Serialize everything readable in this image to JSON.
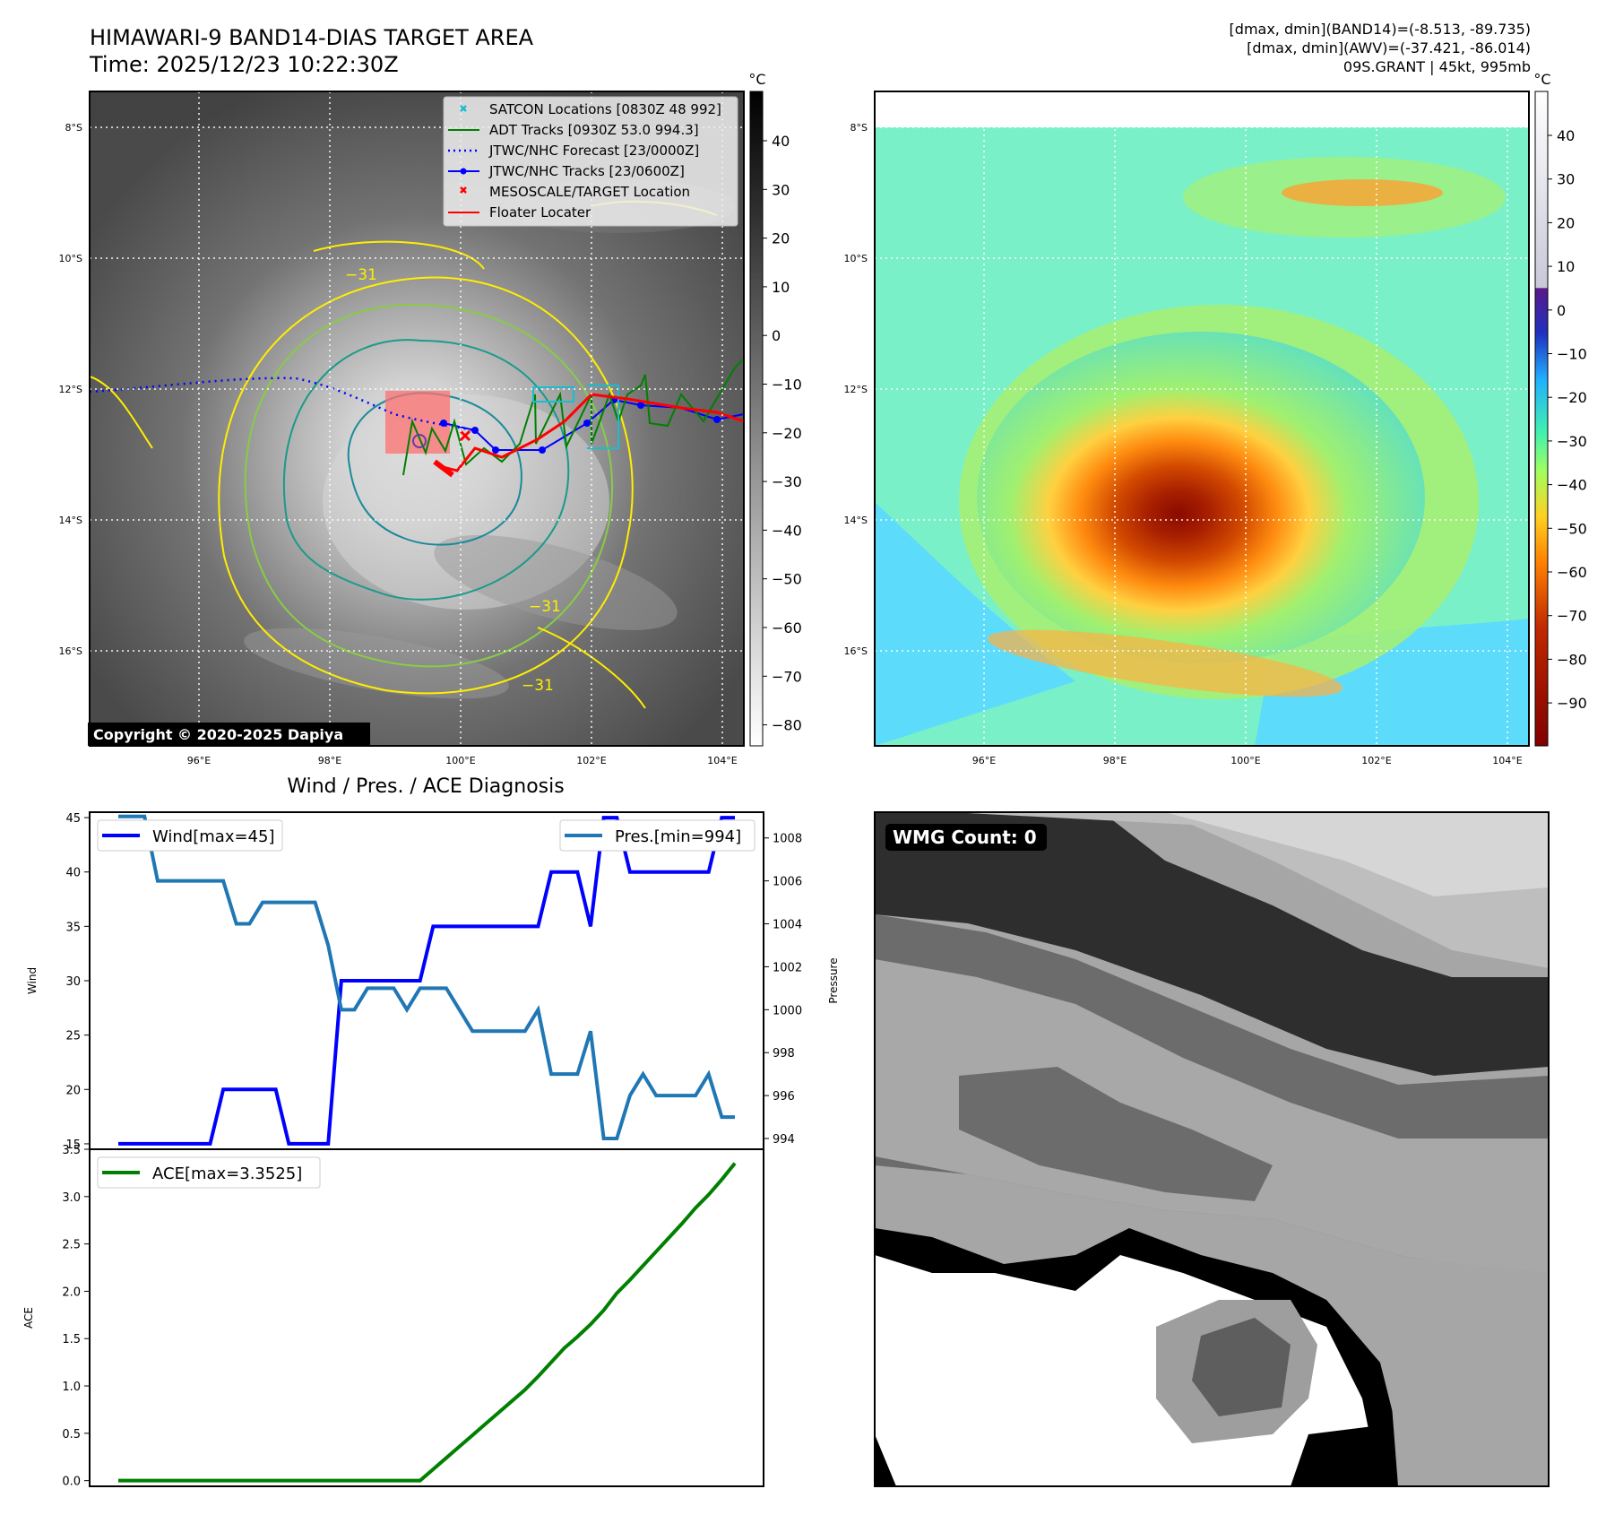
{
  "header": {
    "title": "HIMAWARI-9 BAND14-DIAS TARGET AREA",
    "time": "Time: 2025/12/23 10:22:30Z",
    "info_line1": "[dmax, dmin](BAND14)=(-8.513, -89.735)",
    "info_line2": "[dmax, dmin](AWV)=(-37.421, -86.014)",
    "info_line3": "09S.GRANT | 45kt, 995mb"
  },
  "map": {
    "lon_ticks": [
      "96°E",
      "98°E",
      "100°E",
      "102°E",
      "104°E"
    ],
    "lat_ticks": [
      "8°S",
      "10°S",
      "12°S",
      "14°S",
      "16°S"
    ],
    "copyright": "Copyright © 2020-2025 Dapiya",
    "contour_label": "−31",
    "legend": [
      {
        "label": "SATCON Locations [0830Z 48 992]",
        "color": "#17becf",
        "icon": "x-marker-icon"
      },
      {
        "label": "ADT Tracks [0930Z 53.0 994.3]",
        "color": "#008000",
        "icon": "line-icon"
      },
      {
        "label": "JTWC/NHC Forecast [23/0000Z]",
        "color": "#0000ff",
        "icon": "dotted-line-icon"
      },
      {
        "label": "JTWC/NHC Tracks [23/0600Z]",
        "color": "#0000ff",
        "icon": "line-dot-icon"
      },
      {
        "label": "MESOSCALE/TARGET Location",
        "color": "#ff0000",
        "icon": "x-marker-icon"
      },
      {
        "label": "Floater Locater",
        "color": "#ff0000",
        "icon": "line-icon"
      }
    ]
  },
  "colorbar_gray": {
    "unit": "°C",
    "ticks": [
      "40",
      "30",
      "20",
      "10",
      "0",
      "−10",
      "−20",
      "−30",
      "−40",
      "−50",
      "−60",
      "−70",
      "−80"
    ]
  },
  "colorbar_color": {
    "unit": "°C",
    "ticks": [
      "40",
      "30",
      "20",
      "10",
      "0",
      "−10",
      "−20",
      "−30",
      "−40",
      "−50",
      "−60",
      "−70",
      "−80",
      "−90"
    ]
  },
  "wmg": {
    "label": "WMG Count: 0"
  },
  "chart_data": [
    {
      "type": "line",
      "title": "Wind / Pres. / ACE Diagnosis",
      "ylabel": "Wind",
      "y2label": "Pressure",
      "ylim": [
        14.5,
        45.5
      ],
      "y2lim": [
        993.5,
        1009.2
      ],
      "yticks": [
        15,
        20,
        25,
        30,
        35,
        40,
        45
      ],
      "y2ticks": [
        994,
        996,
        998,
        1000,
        1002,
        1004,
        1006,
        1008
      ],
      "series": [
        {
          "name": "Wind[max=45]",
          "color": "#0000ff",
          "axis": "left",
          "values": [
            15,
            15,
            15,
            15,
            15,
            15,
            15,
            15,
            20,
            20,
            20,
            20,
            20,
            15,
            15,
            15,
            15,
            30,
            30,
            30,
            30,
            30,
            30,
            30,
            35,
            35,
            35,
            35,
            35,
            35,
            35,
            35,
            35,
            40,
            40,
            40,
            35,
            45,
            45,
            40,
            40,
            40,
            40,
            40,
            40,
            40,
            45,
            45
          ]
        },
        {
          "name": "Pres.[min=994]",
          "color": "#1f77b4",
          "axis": "right",
          "values": [
            1009,
            1009,
            1009,
            1006,
            1006,
            1006,
            1006,
            1006,
            1006,
            1004,
            1004,
            1005,
            1005,
            1005,
            1005,
            1005,
            1003,
            1000,
            1000,
            1001,
            1001,
            1001,
            1000,
            1001,
            1001,
            1001,
            1000,
            999,
            999,
            999,
            999,
            999,
            1000,
            997,
            997,
            997,
            999,
            994,
            994,
            996,
            997,
            996,
            996,
            996,
            996,
            997,
            995,
            995
          ]
        }
      ]
    },
    {
      "type": "line",
      "ylabel": "ACE",
      "ylim": [
        -0.06,
        3.5
      ],
      "yticks": [
        0.0,
        0.5,
        1.0,
        1.5,
        2.0,
        2.5,
        3.0,
        3.5
      ],
      "series": [
        {
          "name": "ACE[max=3.3525]",
          "color": "#008000",
          "values": [
            0,
            0,
            0,
            0,
            0,
            0,
            0,
            0,
            0,
            0,
            0,
            0,
            0,
            0,
            0,
            0,
            0,
            0,
            0,
            0,
            0,
            0,
            0,
            0,
            0.12,
            0.24,
            0.36,
            0.48,
            0.6,
            0.72,
            0.84,
            0.96,
            1.1,
            1.25,
            1.4,
            1.52,
            1.65,
            1.8,
            1.98,
            2.12,
            2.27,
            2.42,
            2.57,
            2.72,
            2.88,
            3.02,
            3.18,
            3.3525
          ]
        }
      ]
    }
  ]
}
